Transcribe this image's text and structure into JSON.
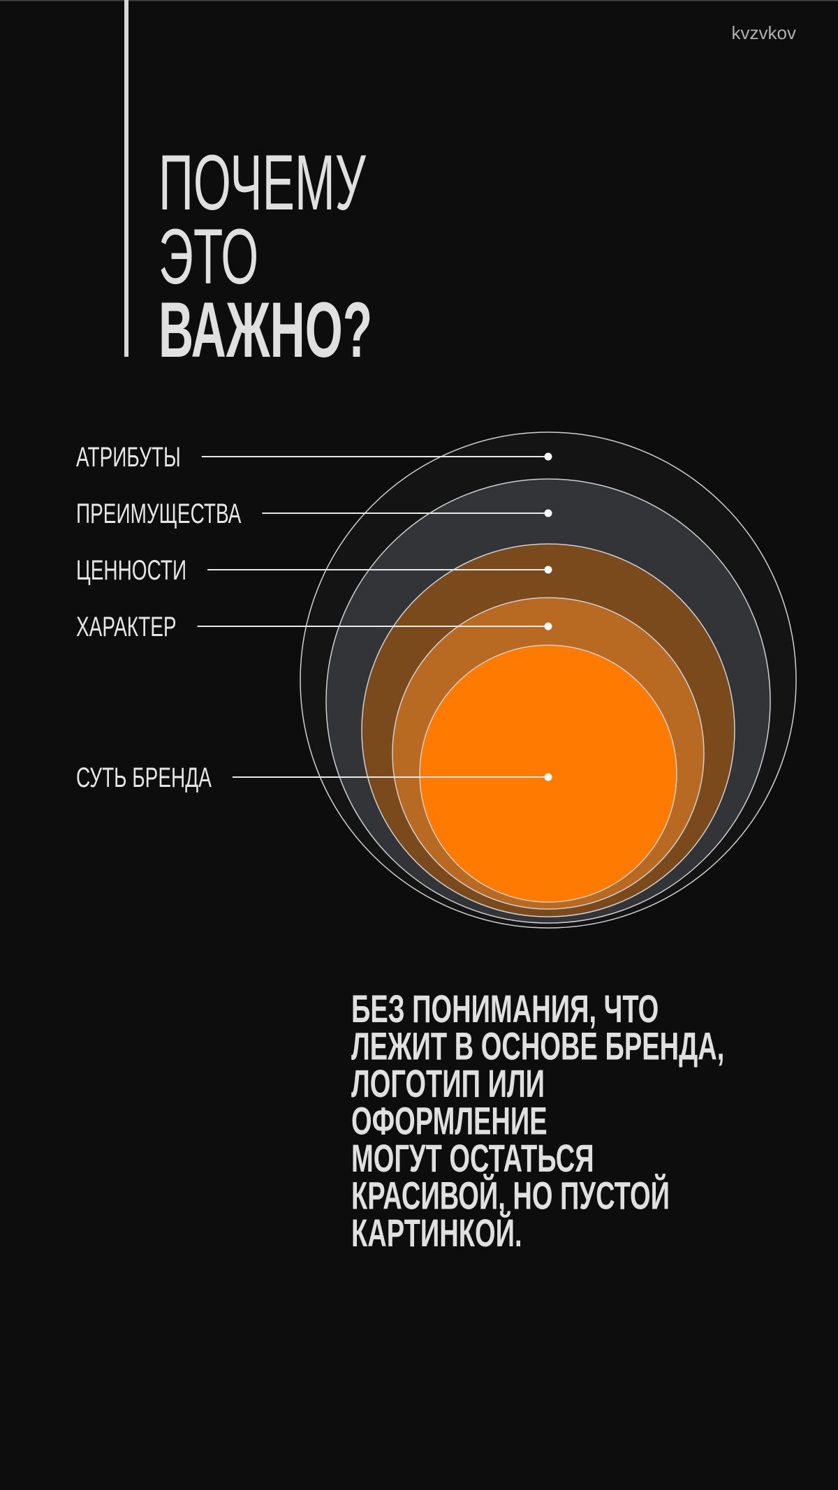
{
  "header": {
    "author": "kvzvkov",
    "title": [
      "ПОЧЕМУ",
      "ЭТО",
      "ВАЖНО?"
    ]
  },
  "layers": [
    "АТРИБУТЫ",
    "ПРЕИМУЩЕСТВА",
    "ЦЕННОСТИ",
    "ХАРАКТЕР",
    "СУТЬ БРЕНДА"
  ],
  "body": [
    "БЕЗ ПОНИМАНИЯ, ЧТО",
    "ЛЕЖИТ В ОСНОВЕ БРЕНДА,",
    "ЛОГОТИП ИЛИ",
    "ОФОРМЛЕНИЕ",
    "МОГУТ ОСТАТЬСЯ",
    "КРАСИВОЙ, НО ПУСТОЙ",
    "КАРТИНКОЙ."
  ]
}
